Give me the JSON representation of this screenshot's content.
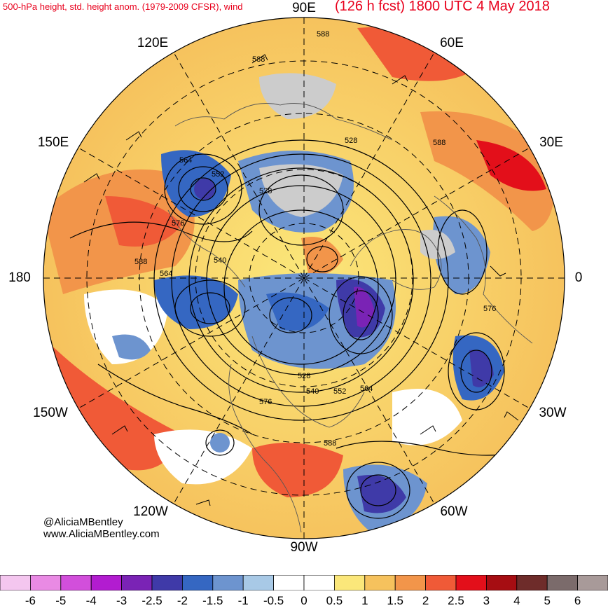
{
  "header": {
    "left_title": "500-hPa height, std. height anom. (1979-2009 CFSR), wind",
    "right_title": "(126 h fcst) 1800 UTC 4 May 2018"
  },
  "longitude_labels": [
    {
      "text": "90E",
      "id": "lon-90e"
    },
    {
      "text": "60E",
      "id": "lon-60e"
    },
    {
      "text": "120E",
      "id": "lon-120e"
    },
    {
      "text": "30E",
      "id": "lon-30e"
    },
    {
      "text": "150E",
      "id": "lon-150e"
    },
    {
      "text": "180",
      "id": "lon-180"
    },
    {
      "text": "0",
      "id": "lon-0"
    },
    {
      "text": "150W",
      "id": "lon-150w"
    },
    {
      "text": "30W",
      "id": "lon-30w"
    },
    {
      "text": "120W",
      "id": "lon-120w"
    },
    {
      "text": "60W",
      "id": "lon-60w"
    },
    {
      "text": "90W",
      "id": "lon-90w"
    }
  ],
  "contour_labels": [
    "588",
    "588",
    "528",
    "588",
    "564",
    "552",
    "528",
    "576",
    "588",
    "540",
    "564",
    "576",
    "528",
    "540",
    "552",
    "564",
    "576",
    "588"
  ],
  "credits": {
    "handle": "@AliciaMBentley",
    "website": "www.AliciaMBentley.com"
  },
  "colorbar": {
    "labels": [
      "-6",
      "-5",
      "-4",
      "-3",
      "-2.5",
      "-2",
      "-1.5",
      "-1",
      "-0.5",
      "0",
      "0.5",
      "1",
      "1.5",
      "2",
      "2.5",
      "3",
      "4",
      "5",
      "6"
    ],
    "colors": [
      "#f4c6ef",
      "#e98ae4",
      "#d24fdb",
      "#b21cd0",
      "#7a23b5",
      "#3f3aa8",
      "#3567c2",
      "#6d94cf",
      "#a8c9e6",
      "#ffffff",
      "#ffffff",
      "#fbe77a",
      "#f6c25d",
      "#f2954a",
      "#f05a37",
      "#e30f1a",
      "#a60d12",
      "#6e2c2a",
      "#7b6b6b",
      "#a89a99"
    ]
  }
}
